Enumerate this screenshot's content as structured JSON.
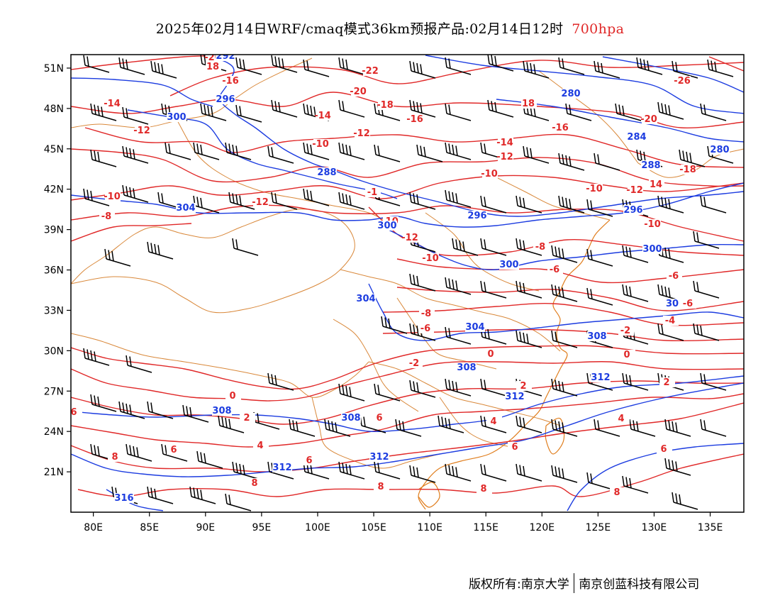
{
  "title": {
    "main": "2025年02月14日WRF/cmaq模式36km预报产品:02月14日12时",
    "level": "700hpa",
    "level_color": "#e02828"
  },
  "map": {
    "lon_range": [
      78,
      138
    ],
    "lat_range": [
      18,
      52
    ],
    "x_ticks": [
      "80E",
      "85E",
      "90E",
      "95E",
      "100E",
      "105E",
      "110E",
      "115E",
      "120E",
      "125E",
      "130E",
      "135E"
    ],
    "y_ticks": [
      "51N",
      "48N",
      "45N",
      "42N",
      "39N",
      "36N",
      "33N",
      "30N",
      "27N",
      "24N",
      "21N"
    ],
    "colors": {
      "temperature_contours": "#e02828",
      "height_contours": "#1c3ce0",
      "boundaries": "#d9883a",
      "coastline": "#e07e1e",
      "wind_barbs": "#000000"
    },
    "temperature_labels": [
      "-20",
      "-22",
      "-26",
      "18",
      "-18",
      "-20",
      "-16",
      "-14",
      "-12",
      "-10",
      "-8",
      "-6",
      "-4",
      "-2",
      "0",
      "2",
      "4",
      "6",
      "8"
    ],
    "height_labels": [
      "296",
      "292",
      "288",
      "284",
      "280",
      "300",
      "304",
      "308",
      "312",
      "316"
    ]
  },
  "footer": {
    "left": "版权所有:南京大学",
    "right": "南京创蓝科技有限公司"
  }
}
